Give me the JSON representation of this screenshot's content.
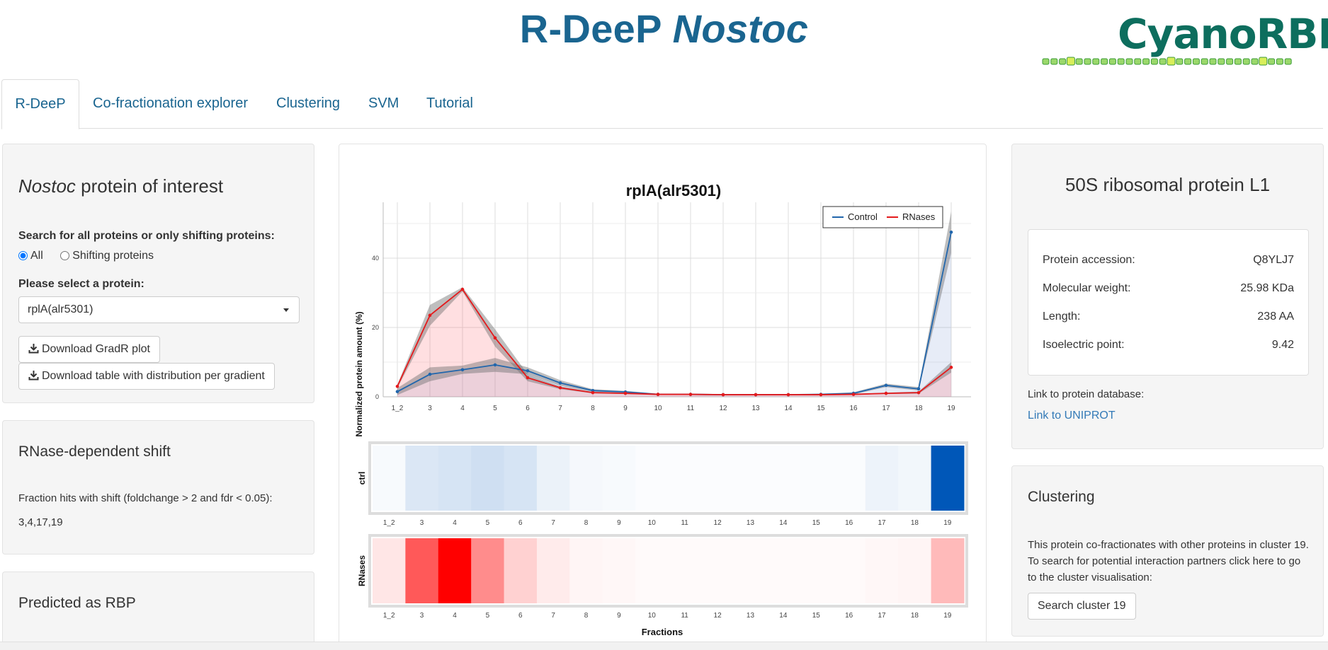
{
  "header": {
    "title_prefix": "R-DeeP ",
    "title_italic": "Nostoc",
    "logo_text": "CyanoRBP"
  },
  "tabs": [
    {
      "label": "R-DeeP",
      "active": true
    },
    {
      "label": "Co-fractionation explorer"
    },
    {
      "label": "Clustering"
    },
    {
      "label": "SVM"
    },
    {
      "label": "Tutorial"
    }
  ],
  "left": {
    "protein_panel": {
      "title_italic": "Nostoc",
      "title_rest": " protein of interest",
      "search_label": "Search for all proteins or only shifting proteins:",
      "radio_all": "All",
      "radio_shifting": "Shifting proteins",
      "select_label": "Please select a protein:",
      "select_value": "rplA(alr5301)",
      "download_plot": "Download GradR plot",
      "download_table": "Download table with distribution per gradient"
    },
    "shift_panel": {
      "title": "RNase-dependent shift",
      "text": "Fraction hits with shift (foldchange > 2 and fdr < 0.05):",
      "hits": "3,4,17,19"
    },
    "rbp_panel": {
      "title": "Predicted as RBP"
    }
  },
  "right": {
    "protein_title": "50S ribosomal protein L1",
    "details": [
      {
        "label": "Protein accession:",
        "value": "Q8YLJ7"
      },
      {
        "label": "Molecular weight:",
        "value": "25.98 KDa"
      },
      {
        "label": "Length:",
        "value": "238 AA"
      },
      {
        "label": "Isoelectric point:",
        "value": "9.42"
      }
    ],
    "db_label": "Link to protein database:",
    "db_link": "Link to UNIPROT",
    "clustering": {
      "title": "Clustering",
      "text": "This protein co-fractionates with other proteins in cluster 19. To search for potential interaction partners click here to go to the cluster visualisation:",
      "button": "Search cluster 19"
    }
  },
  "chart_data": [
    {
      "type": "line",
      "title": "rplA(alr5301)",
      "ylabel": "Normalized protein amount (%)",
      "xlabel": "",
      "categories": [
        "1_2",
        "3",
        "4",
        "5",
        "6",
        "7",
        "8",
        "9",
        "10",
        "11",
        "12",
        "13",
        "14",
        "15",
        "16",
        "17",
        "18",
        "19"
      ],
      "ylim": [
        0,
        55
      ],
      "yticks": [
        0,
        20,
        40
      ],
      "legend_position": "top-right",
      "series": [
        {
          "name": "Control",
          "color": "#2166ac",
          "values": [
            1.5,
            6.5,
            7.8,
            9.2,
            7.5,
            4.0,
            1.8,
            1.4,
            0.7,
            0.7,
            0.6,
            0.6,
            0.6,
            0.7,
            1.0,
            3.3,
            2.3,
            47.5
          ],
          "band": [
            1.0,
            2.0,
            1.2,
            2.0,
            1.0,
            0.8,
            0.4,
            0.3,
            0.2,
            0.2,
            0.2,
            0.2,
            0.2,
            0.2,
            0.3,
            0.5,
            0.5,
            6.0
          ]
        },
        {
          "name": "RNases",
          "color": "#e41a1c",
          "values": [
            3.0,
            23.5,
            31.0,
            17.0,
            5.5,
            2.6,
            1.2,
            1.0,
            0.7,
            0.7,
            0.6,
            0.6,
            0.6,
            0.6,
            0.7,
            1.0,
            1.2,
            8.5
          ],
          "band": [
            0.5,
            3.0,
            0.6,
            2.5,
            1.0,
            0.4,
            0.2,
            0.2,
            0.1,
            0.1,
            0.1,
            0.1,
            0.1,
            0.1,
            0.1,
            0.2,
            0.3,
            1.5
          ]
        }
      ]
    },
    {
      "type": "heatmap",
      "xlabel": "Fractions",
      "categories": [
        "1_2",
        "3",
        "4",
        "5",
        "6",
        "7",
        "8",
        "9",
        "10",
        "11",
        "12",
        "13",
        "14",
        "15",
        "16",
        "17",
        "18",
        "19"
      ],
      "rows": [
        {
          "name": "ctrl",
          "color": "#0057b8",
          "values": [
            0.03,
            0.14,
            0.16,
            0.19,
            0.16,
            0.08,
            0.04,
            0.03,
            0.015,
            0.015,
            0.015,
            0.015,
            0.015,
            0.02,
            0.02,
            0.07,
            0.05,
            1.0
          ]
        },
        {
          "name": "RNases",
          "color": "#ff0000",
          "values": [
            0.1,
            0.65,
            1.0,
            0.45,
            0.18,
            0.08,
            0.04,
            0.03,
            0.02,
            0.02,
            0.02,
            0.02,
            0.02,
            0.02,
            0.02,
            0.03,
            0.04,
            0.27
          ]
        }
      ]
    }
  ]
}
